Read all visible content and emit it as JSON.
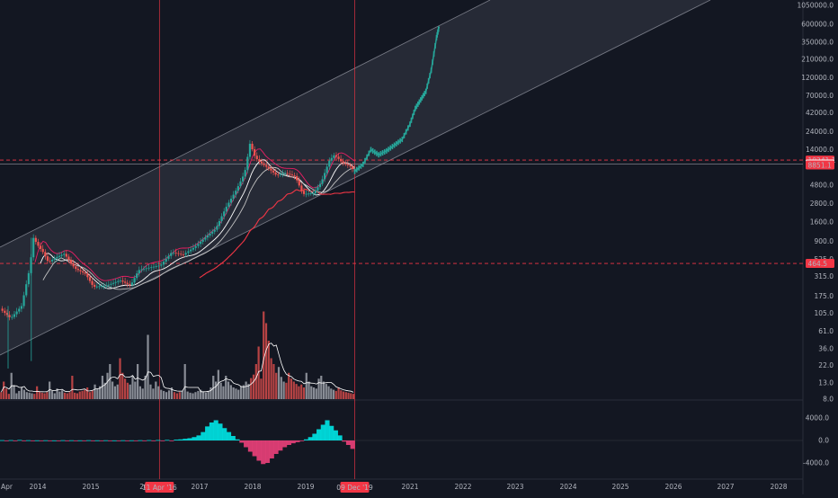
{
  "chart_data": {
    "type": "candlestick",
    "scale": "log",
    "theme": {
      "background": "#131722",
      "channel_fill": "#2a2e39",
      "channel_line": "#787b86",
      "bull": "#26a69a",
      "bear": "#ef5350",
      "projection": "#26a69a",
      "marker_line": "#f23645",
      "ma_fast": "#ffffff",
      "ma_slow": "#c2c2c2",
      "ma_red": "#f23645",
      "ma_pink": "#e91e63",
      "volume_ma": "#ffffff",
      "hist_up": "#00e5e5",
      "hist_down": "#ec407a",
      "axis_text": "#b2b5be"
    },
    "price_axis": {
      "ticks": [
        "1050000.0",
        "600000.0",
        "350000.0",
        "210000.0",
        "120000.0",
        "70000.0",
        "42000.0",
        "24000.0",
        "14000.0",
        "9100.0",
        "4800.0",
        "2800.0",
        "1600.0",
        "900.0",
        "525.0",
        "315.0",
        "175.0",
        "105.0",
        "61.0",
        "36.0",
        "22.0",
        "13.0",
        "8.0"
      ],
      "badges": [
        {
          "label": "10241.1",
          "color": "#f23645",
          "value": 10241.1
        },
        {
          "label": "9100.0",
          "color": "#ffffff",
          "value": 9100
        },
        {
          "label": "8851.1",
          "color": "#f23645",
          "value": 8851.1
        },
        {
          "label": "464.5",
          "color": "#f23645",
          "value": 464.5
        }
      ],
      "horizontal_levels": [
        10241.1,
        464.5
      ]
    },
    "oscillator_axis": {
      "ticks": [
        "4000.0",
        "0.0",
        "-4000.0"
      ]
    },
    "time_axis": {
      "ticks": [
        "Apr",
        "2014",
        "2015",
        "20",
        "2017",
        "2018",
        "2019",
        "2021",
        "2022",
        "2023",
        "2024",
        "2025",
        "2026",
        "2027",
        "2028"
      ],
      "markers": [
        {
          "label": "11 Apr '16"
        },
        {
          "label": "09 Dec '19"
        }
      ]
    },
    "price_series": [
      {
        "t": 2013.3,
        "v": 120
      },
      {
        "t": 2013.5,
        "v": 90
      },
      {
        "t": 2013.7,
        "v": 130
      },
      {
        "t": 2013.85,
        "v": 400
      },
      {
        "t": 2013.92,
        "v": 1000
      },
      {
        "t": 2014.0,
        "v": 800
      },
      {
        "t": 2014.1,
        "v": 650
      },
      {
        "t": 2014.2,
        "v": 480
      },
      {
        "t": 2014.35,
        "v": 560
      },
      {
        "t": 2014.5,
        "v": 620
      },
      {
        "t": 2014.7,
        "v": 400
      },
      {
        "t": 2014.9,
        "v": 340
      },
      {
        "t": 2015.05,
        "v": 230
      },
      {
        "t": 2015.3,
        "v": 240
      },
      {
        "t": 2015.55,
        "v": 280
      },
      {
        "t": 2015.75,
        "v": 240
      },
      {
        "t": 2015.9,
        "v": 380
      },
      {
        "t": 2016.1,
        "v": 410
      },
      {
        "t": 2016.3,
        "v": 440
      },
      {
        "t": 2016.5,
        "v": 650
      },
      {
        "t": 2016.7,
        "v": 600
      },
      {
        "t": 2016.9,
        "v": 750
      },
      {
        "t": 2017.1,
        "v": 1000
      },
      {
        "t": 2017.3,
        "v": 1300
      },
      {
        "t": 2017.5,
        "v": 2500
      },
      {
        "t": 2017.7,
        "v": 4300
      },
      {
        "t": 2017.85,
        "v": 7000
      },
      {
        "t": 2017.95,
        "v": 17000
      },
      {
        "t": 2018.05,
        "v": 11000
      },
      {
        "t": 2018.15,
        "v": 9500
      },
      {
        "t": 2018.3,
        "v": 8000
      },
      {
        "t": 2018.45,
        "v": 6500
      },
      {
        "t": 2018.6,
        "v": 7000
      },
      {
        "t": 2018.8,
        "v": 6300
      },
      {
        "t": 2018.95,
        "v": 3700
      },
      {
        "t": 2019.15,
        "v": 3800
      },
      {
        "t": 2019.3,
        "v": 5300
      },
      {
        "t": 2019.45,
        "v": 10000
      },
      {
        "t": 2019.55,
        "v": 12000
      },
      {
        "t": 2019.7,
        "v": 9500
      },
      {
        "t": 2019.85,
        "v": 8500
      },
      {
        "t": 2019.94,
        "v": 7300
      }
    ],
    "projection_series": [
      {
        "t": 2019.94,
        "v": 7300
      },
      {
        "t": 2020.1,
        "v": 9000
      },
      {
        "t": 2020.25,
        "v": 14000
      },
      {
        "t": 2020.4,
        "v": 12000
      },
      {
        "t": 2020.55,
        "v": 13500
      },
      {
        "t": 2020.7,
        "v": 16000
      },
      {
        "t": 2020.85,
        "v": 19000
      },
      {
        "t": 2021.0,
        "v": 30000
      },
      {
        "t": 2021.1,
        "v": 48000
      },
      {
        "t": 2021.2,
        "v": 62000
      },
      {
        "t": 2021.3,
        "v": 80000
      },
      {
        "t": 2021.4,
        "v": 150000
      },
      {
        "t": 2021.5,
        "v": 400000
      },
      {
        "t": 2021.55,
        "v": 560000
      }
    ],
    "volume_series": [
      12,
      30,
      18,
      9,
      45,
      24,
      10,
      14,
      20,
      16,
      12,
      11,
      10,
      9,
      22,
      13,
      11,
      10,
      12,
      30,
      14,
      10,
      18,
      13,
      15,
      11,
      10,
      12,
      40,
      11,
      10,
      13,
      14,
      16,
      20,
      12,
      15,
      25,
      18,
      22,
      40,
      28,
      45,
      60,
      30,
      22,
      25,
      70,
      45,
      35,
      28,
      25,
      40,
      30,
      60,
      22,
      18,
      40,
      110,
      25,
      18,
      30,
      22,
      16,
      14,
      12,
      15,
      20,
      12,
      10,
      12,
      14,
      60,
      13,
      11,
      10,
      12,
      14,
      16,
      13,
      11,
      14,
      20,
      40,
      30,
      50,
      28,
      22,
      40,
      30,
      24,
      20,
      18,
      16,
      22,
      24,
      30,
      26,
      36,
      42,
      60,
      90,
      35,
      150,
      130,
      100,
      70,
      60,
      45,
      55,
      38,
      30,
      28,
      45,
      35,
      30,
      26,
      22,
      25,
      20,
      45,
      30,
      22,
      20,
      18,
      35,
      40,
      30,
      26,
      22,
      18,
      16,
      14,
      20,
      15,
      13,
      12,
      11,
      10,
      9
    ],
    "oscillator_series": [
      50,
      -40,
      60,
      -80,
      90,
      -60,
      40,
      -30,
      20,
      -50,
      30,
      -20,
      10,
      -30,
      40,
      -20,
      30,
      -40,
      20,
      -30,
      40,
      -30,
      20,
      -10,
      30,
      -20,
      10,
      -20,
      30,
      -10,
      20,
      -30,
      40,
      -20,
      60,
      -40,
      80,
      -50,
      100,
      -80,
      150,
      200,
      300,
      400,
      600,
      900,
      1500,
      2500,
      3200,
      3600,
      3000,
      2200,
      1500,
      800,
      200,
      -400,
      -1200,
      -2000,
      -2800,
      -3600,
      -4200,
      -4000,
      -3200,
      -2400,
      -1800,
      -1200,
      -800,
      -500,
      -300,
      -100,
      200,
      600,
      1200,
      2000,
      2800,
      3600,
      2600,
      1800,
      900,
      -200,
      -800,
      -1500
    ]
  }
}
